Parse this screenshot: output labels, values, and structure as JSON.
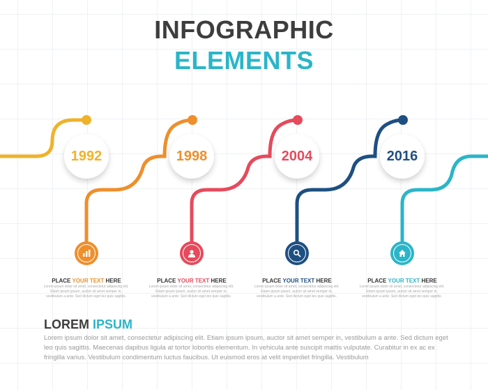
{
  "title": {
    "line1": "INFOGRAPHIC",
    "line2": "ELEMENTS"
  },
  "milestones": [
    {
      "year": "1992",
      "color": "#f0b22a",
      "stem_color": "#ee8f2c",
      "icon": "chart-icon",
      "label_pre": "PLACE ",
      "label_highlight": "YOUR TEXT",
      "label_post": " HERE",
      "highlight_color": "#ee8f2c",
      "text": "Lorem ipsum dolor sit amet, consectetur adipiscing elit. Etiam ipsum ipsum, auctor sit amet semper in, vestibulum a ante. Sed dictum eget leo quis sagittis."
    },
    {
      "year": "1998",
      "color": "#ee8f2c",
      "stem_color": "#e64a5c",
      "icon": "user-icon",
      "label_pre": "PLACE ",
      "label_highlight": "YOUR TEXT",
      "label_post": " HERE",
      "highlight_color": "#e64a5c",
      "text": "Lorem ipsum dolor sit amet, consectetur adipiscing elit. Etiam ipsum ipsum, auctor sit amet semper in, vestibulum a ante. Sed dictum eget leo quis sagittis."
    },
    {
      "year": "2004",
      "color": "#e64a5c",
      "stem_color": "#1e4f82",
      "icon": "search-icon",
      "label_pre": "PLACE ",
      "label_highlight": "YOUR TEXT",
      "label_post": " HERE",
      "highlight_color": "#1e4f82",
      "text": "Lorem ipsum dolor sit amet, consectetur adipiscing elit. Etiam ipsum ipsum, auctor sit amet semper in, vestibulum a ante. Sed dictum eget leo quis sagittis."
    },
    {
      "year": "2016",
      "color": "#1e4f82",
      "stem_color": "#2bb5c8",
      "icon": "home-icon",
      "label_pre": "PLACE ",
      "label_highlight": "YOUR TEXT",
      "label_post": " HERE",
      "highlight_color": "#2bb5c8",
      "text": "Lorem ipsum dolor sit amet, consectetur adipiscing elit. Etiam ipsum ipsum, auctor sit amet semper in, vestibulum a ante. Sed dictum eget leo quis sagittis."
    }
  ],
  "footer": {
    "title_main": "LOREM",
    "title_accent": "IPSUM",
    "body": "Lorem ipsum dolor sit amet, consectetur adipiscing elit. Etiam ipsum ipsum, auctor sit amet semper in, vestibulum a ante. Sed dictum eget leo quis sagittis. Maecenas dapibus ligula at tortor lobortis elementum. In vehicula ante suscipit mattis vulputate. Curabitur in ex ac ex fringilla varius. Vestibulum condimentum luctus faucibus. Ut euismod eros at velit imperdiet fringilla. Vestibulum"
  },
  "colors": {
    "title_dark": "#3d3d3d",
    "accent_teal": "#2bb5c8",
    "end_line_teal": "#2bb5c8"
  }
}
